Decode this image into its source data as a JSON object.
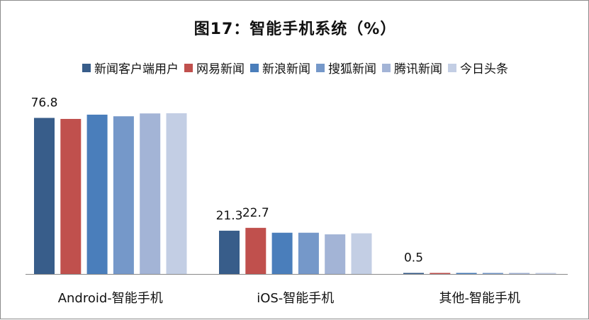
{
  "chart_data": {
    "type": "bar",
    "title": "图17：智能手机系统（%）",
    "categories": [
      "Android-智能手机",
      "iOS-智能手机",
      "其他-智能手机"
    ],
    "ylim": [
      0,
      85
    ],
    "grid": false,
    "legend_position": "top",
    "series": [
      {
        "name": "新闻客户端用户",
        "color": "#385d8a",
        "values": [
          76.8,
          21.3,
          0.5
        ]
      },
      {
        "name": "网易新闻",
        "color": "#c0504d",
        "values": [
          76.3,
          22.7,
          0.5
        ]
      },
      {
        "name": "新浪新闻",
        "color": "#4a7ebb",
        "values": [
          78.4,
          20.3,
          0.4
        ]
      },
      {
        "name": "搜狐新闻",
        "color": "#7598c9",
        "values": [
          77.6,
          20.3,
          0.4
        ]
      },
      {
        "name": "腾讯新闻",
        "color": "#a3b4d6",
        "values": [
          79.0,
          19.5,
          0.3
        ]
      },
      {
        "name": "今日头条",
        "color": "#c3cee4",
        "values": [
          79.1,
          20.0,
          0.3
        ]
      }
    ],
    "data_labels": [
      {
        "series": 0,
        "category": 0,
        "text": "76.8"
      },
      {
        "series": 0,
        "category": 1,
        "text": "21.3"
      },
      {
        "series": 1,
        "category": 1,
        "text": "22.7"
      },
      {
        "series": 0,
        "category": 2,
        "text": "0.5"
      }
    ]
  }
}
